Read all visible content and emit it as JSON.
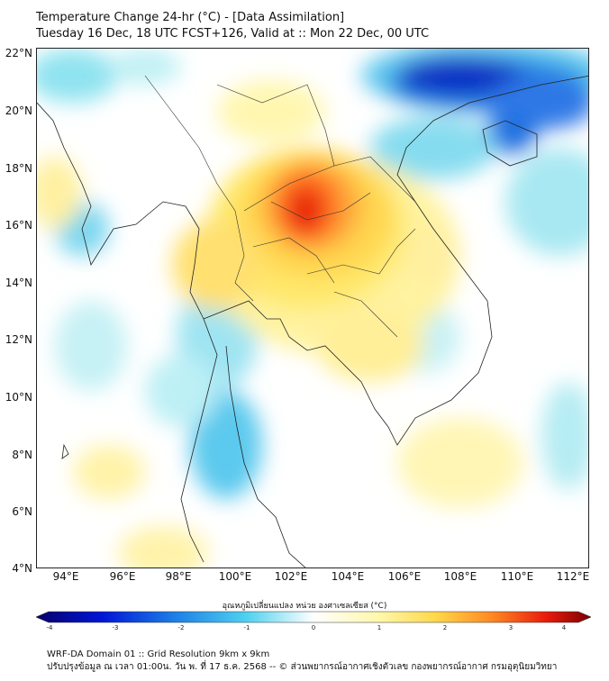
{
  "header": {
    "title_line1": "Temperature Change 24-hr (°C) - [Data Assimilation]",
    "title_line2": "Tuesday 16 Dec, 18 UTC FCST+126, Valid at :: Mon 22 Dec, 00 UTC"
  },
  "map": {
    "lat_labels": [
      "22°N",
      "20°N",
      "18°N",
      "16°N",
      "14°N",
      "12°N",
      "10°N",
      "8°N",
      "6°N",
      "4°N"
    ],
    "lon_labels": [
      "94°E",
      "96°E",
      "98°E",
      "100°E",
      "102°E",
      "104°E",
      "106°E",
      "108°E",
      "110°E",
      "112°E"
    ],
    "field": "24-hour temperature change",
    "warm_center_name": "northeast-thailand-warming",
    "cool_center_name": "hainan-gulf-of-tonkin-cooling"
  },
  "colorbar": {
    "label": "อุณหภูมิเปลี่ยนแปลง หน่วย องศาเซลเซียส (°C)",
    "ticks": [
      "-4",
      "-3",
      "-2",
      "-1",
      "0",
      "1",
      "2",
      "3",
      "4"
    ],
    "min": -4,
    "max": 4
  },
  "footer": {
    "line1": "WRF-DA Domain 01 :: Grid Resolution 9km x 9km",
    "line2": "ปรับปรุงข้อมูล ณ เวลา 01:00น. วัน พ. ที่ 17 ธ.ค. 2568 -- © ส่วนพยากรณ์อากาศเชิงตัวเลข กองพยากรณ์อากาศ กรมอุตุนิยมวิทยา"
  }
}
